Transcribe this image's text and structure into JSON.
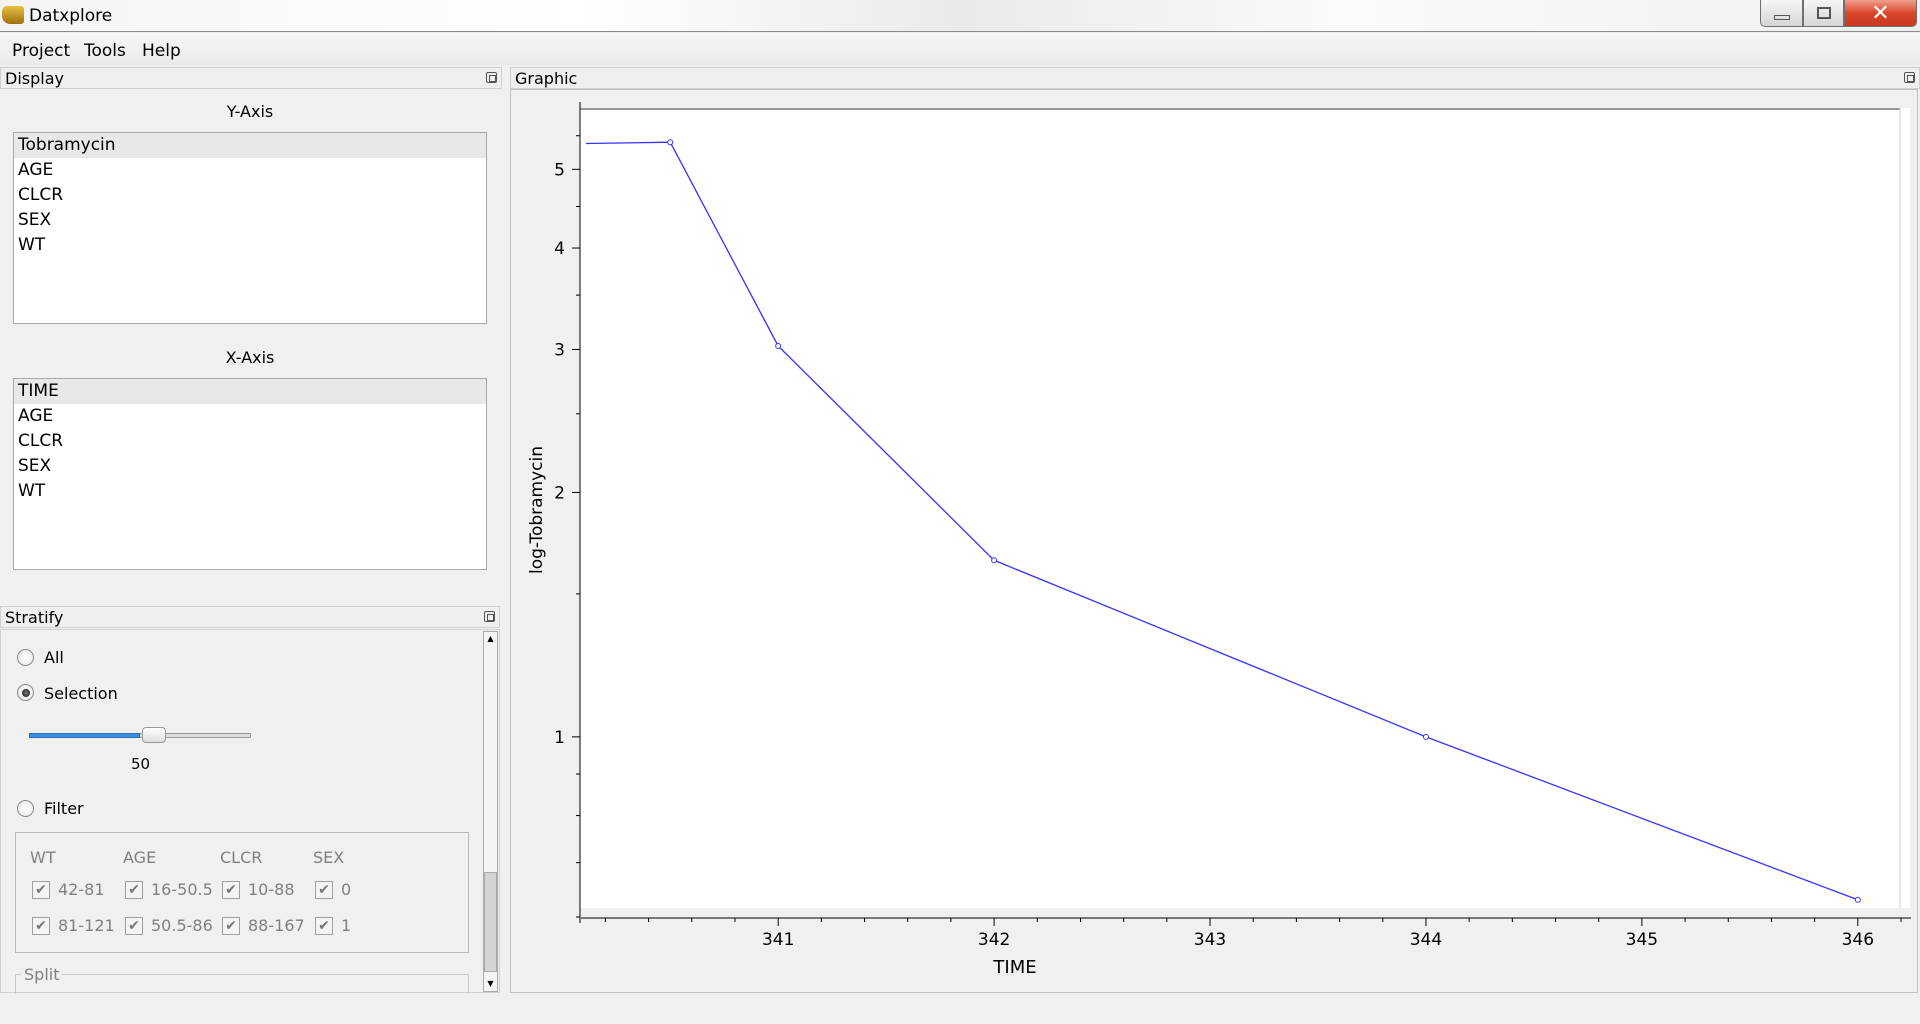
{
  "window": {
    "title": "Datxplore",
    "icon": "app-logo-icon",
    "controls": [
      "minimize-icon",
      "restore-icon",
      "close-icon"
    ],
    "close_color": "#d9472b"
  },
  "menu": {
    "items": [
      "Project",
      "Tools",
      "Help"
    ]
  },
  "display": {
    "title": "Display",
    "y_axis": {
      "label": "Y-Axis",
      "items": [
        "Tobramycin",
        "AGE",
        "CLCR",
        "SEX",
        "WT"
      ],
      "selected": "Tobramycin"
    },
    "x_axis": {
      "label": "X-Axis",
      "items": [
        "TIME",
        "AGE",
        "CLCR",
        "SEX",
        "WT"
      ],
      "selected": "TIME"
    }
  },
  "stratify": {
    "title": "Stratify",
    "options": {
      "all": "All",
      "selection": "Selection",
      "filter": "Filter"
    },
    "checked_option": "selection",
    "slider": {
      "value": "50",
      "fraction": 0.5
    },
    "filter": {
      "columns": [
        {
          "header": "WT",
          "values": [
            "42-81",
            "81-121"
          ]
        },
        {
          "header": "AGE",
          "values": [
            "16-50.5",
            "50.5-86"
          ]
        },
        {
          "header": "CLCR",
          "values": [
            "10-88",
            "88-167"
          ]
        },
        {
          "header": "SEX",
          "values": [
            "0",
            "1"
          ]
        }
      ],
      "all_checked": true
    },
    "split_label": "Split"
  },
  "graphic": {
    "title": "Graphic"
  },
  "chart_data": {
    "type": "line",
    "xlabel": "TIME",
    "ylabel": "log-Tobramycin",
    "y_scale": "log",
    "xlim": [
      340.11,
      346.2
    ],
    "ylim": [
      0.6,
      5.95
    ],
    "x_ticks": [
      "341",
      "342",
      "343",
      "344",
      "345",
      "346"
    ],
    "y_ticks": [
      "1",
      "2",
      "3",
      "4",
      "5"
    ],
    "grid": false,
    "line_color": "#3333ff",
    "series": [
      {
        "x": [
          340.11,
          340.5,
          341,
          342,
          344,
          346
        ],
        "y": [
          5.38,
          5.4,
          3.03,
          1.65,
          1.0,
          0.63
        ],
        "markers": [
          false,
          true,
          true,
          true,
          true,
          true
        ]
      }
    ]
  }
}
